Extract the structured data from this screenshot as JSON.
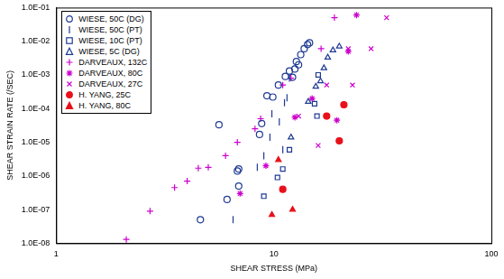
{
  "chart_data": {
    "type": "scatter",
    "x_label": "SHEAR STRESS (MPa)",
    "y_label": "SHEAR STRAIN RATE (/SEC)",
    "log": true,
    "grid": false,
    "legend": "top-left",
    "xlim": [
      1,
      100
    ],
    "xticks": [
      1,
      10,
      100
    ],
    "ylim": [
      1e-08,
      0.1
    ],
    "yticks": [
      {
        "value": 1e-08,
        "label": "1.0E-08"
      },
      {
        "value": 1e-07,
        "label": "1.0E-07"
      },
      {
        "value": 1e-06,
        "label": "1.0E-06"
      },
      {
        "value": 1e-05,
        "label": "1.0E-05"
      },
      {
        "value": 0.0001,
        "label": "1.0E-04"
      },
      {
        "value": 0.001,
        "label": "1.0E-03"
      },
      {
        "value": 0.01,
        "label": "1.0E-02"
      },
      {
        "value": 0.1,
        "label": "1.0E-01"
      }
    ],
    "series": [
      {
        "name": "WIESE, 50C (DG)",
        "color": "#1f3a93",
        "marker": "circle_open",
        "x": [
          4.6,
          6.1,
          6.9,
          6.8,
          6.9,
          5.6,
          8.6,
          8.8,
          9.3,
          9.9,
          10.5,
          11.3,
          11.8,
          12.2,
          12.5,
          12.7,
          13.0,
          13.3,
          13.8,
          14.3,
          14.6
        ],
        "values": [
          5e-08,
          2e-07,
          5e-07,
          1.4e-06,
          1.6e-06,
          3.3e-05,
          1.7e-05,
          3.6e-05,
          0.00024,
          0.00022,
          0.0005,
          0.0009,
          0.0013,
          0.00085,
          0.0015,
          0.0025,
          0.002,
          0.004,
          0.006,
          0.008,
          0.009
        ]
      },
      {
        "name": "WIESE, 50C (PT)",
        "color": "#1f3a93",
        "marker": "line",
        "x": [
          6.5,
          8.4,
          9.0,
          9.6,
          9.8,
          10.6,
          11.0,
          11.2,
          11.5,
          11.8
        ],
        "values": [
          5e-08,
          1.8e-06,
          4e-06,
          1.4e-05,
          7e-05,
          4e-05,
          6e-06,
          0.00015,
          0.00021,
          0.0008
        ]
      },
      {
        "name": "WIESE, 10C (PT)",
        "color": "#1f3a93",
        "marker": "square_open",
        "x": [
          9.0,
          10.4,
          11.0,
          11.8,
          15.4,
          15.8,
          16.0
        ],
        "values": [
          2.5e-07,
          9e-07,
          1.6e-06,
          6e-06,
          0.00014,
          6e-05,
          0.001
        ]
      },
      {
        "name": "WIESE, 5C (DG)",
        "color": "#1f3a93",
        "marker": "triangle_open",
        "x": [
          12.0,
          14.4,
          15.6,
          16.4,
          17.0,
          17.7,
          18.7,
          20.0
        ],
        "values": [
          1.4e-05,
          0.00016,
          0.00045,
          0.00065,
          0.0016,
          0.0033,
          0.0054,
          0.007
        ]
      },
      {
        "name": "DARVEAUX, 132C",
        "color": "#cc00cc",
        "marker": "plus",
        "x": [
          2.1,
          2.7,
          3.5,
          4.0,
          4.5,
          5.0,
          6.0,
          6.8,
          8.2,
          8.7,
          11.0,
          12.0,
          16.5,
          19.0
        ],
        "values": [
          1.3e-08,
          9e-08,
          4.5e-07,
          7e-07,
          1.7e-06,
          1.8e-06,
          4e-06,
          1e-05,
          2.5e-05,
          5e-05,
          0.0005,
          0.0008,
          0.006,
          0.05
        ]
      },
      {
        "name": "DARVEAUX, 80C",
        "color": "#cc00cc",
        "marker": "star",
        "x": [
          7.0,
          9.2,
          12.5,
          15.0,
          19.5,
          22.0,
          24.0
        ],
        "values": [
          3e-07,
          2e-06,
          5.5e-05,
          0.0002,
          4.5e-05,
          0.005,
          0.06
        ]
      },
      {
        "name": "DARVEAUX, 27C",
        "color": "#cc00cc",
        "marker": "cross",
        "x": [
          13.0,
          16.0,
          17.5,
          22.0,
          23.0,
          28.0,
          33.0
        ],
        "values": [
          6e-05,
          8e-06,
          0.0005,
          0.006,
          0.0005,
          0.006,
          0.05
        ]
      },
      {
        "name": "H. YANG, 25C",
        "color": "#e8101a",
        "marker": "circle",
        "x": [
          11.0,
          17.5,
          20.0,
          21.0
        ],
        "values": [
          4e-07,
          6e-05,
          1.1e-05,
          0.00013
        ]
      },
      {
        "name": "H. YANG, 80C",
        "color": "#e8101a",
        "marker": "triangle",
        "x": [
          9.8,
          10.5,
          12.2
        ],
        "values": [
          7e-08,
          3e-06,
          1e-07
        ]
      }
    ]
  }
}
